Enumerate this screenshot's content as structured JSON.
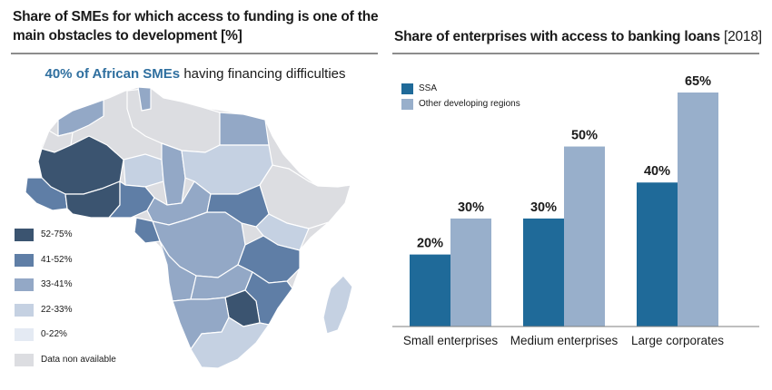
{
  "left_panel": {
    "title": "Share of SMEs for which access to funding is one of the main obstacles to development [%]",
    "subtitle_highlight": "40% of African SMEs",
    "subtitle_rest": " having financing difficulties",
    "legend": [
      {
        "label": "52-75%",
        "color": "#3b5470"
      },
      {
        "label": "41-52%",
        "color": "#5f7ea6"
      },
      {
        "label": "33-41%",
        "color": "#93a8c6"
      },
      {
        "label": "22-33%",
        "color": "#c5d1e2"
      },
      {
        "label": "0-22%",
        "color": "#e4eaf3"
      },
      {
        "label": "Data non available",
        "color": "#dcdde1"
      }
    ]
  },
  "right_panel": {
    "title_bold": "Share of enterprises with access to banking loans",
    "title_year": " [2018]"
  },
  "chart_data": {
    "type": "bar",
    "title": "Share of enterprises with access to banking loans [2018]",
    "categories": [
      "Small enterprises",
      "Medium enterprises",
      "Large corporates"
    ],
    "series": [
      {
        "name": "SSA",
        "values": [
          20,
          30,
          40
        ],
        "labels": [
          "20%",
          "30%",
          "40%"
        ],
        "color": "#1f6a99"
      },
      {
        "name": "Other developing regions",
        "values": [
          30,
          50,
          65
        ],
        "labels": [
          "30%",
          "50%",
          "65%"
        ],
        "color": "#98afcb"
      }
    ],
    "ylim": [
      0,
      65
    ],
    "grid": false,
    "legend_position": "top-left"
  }
}
